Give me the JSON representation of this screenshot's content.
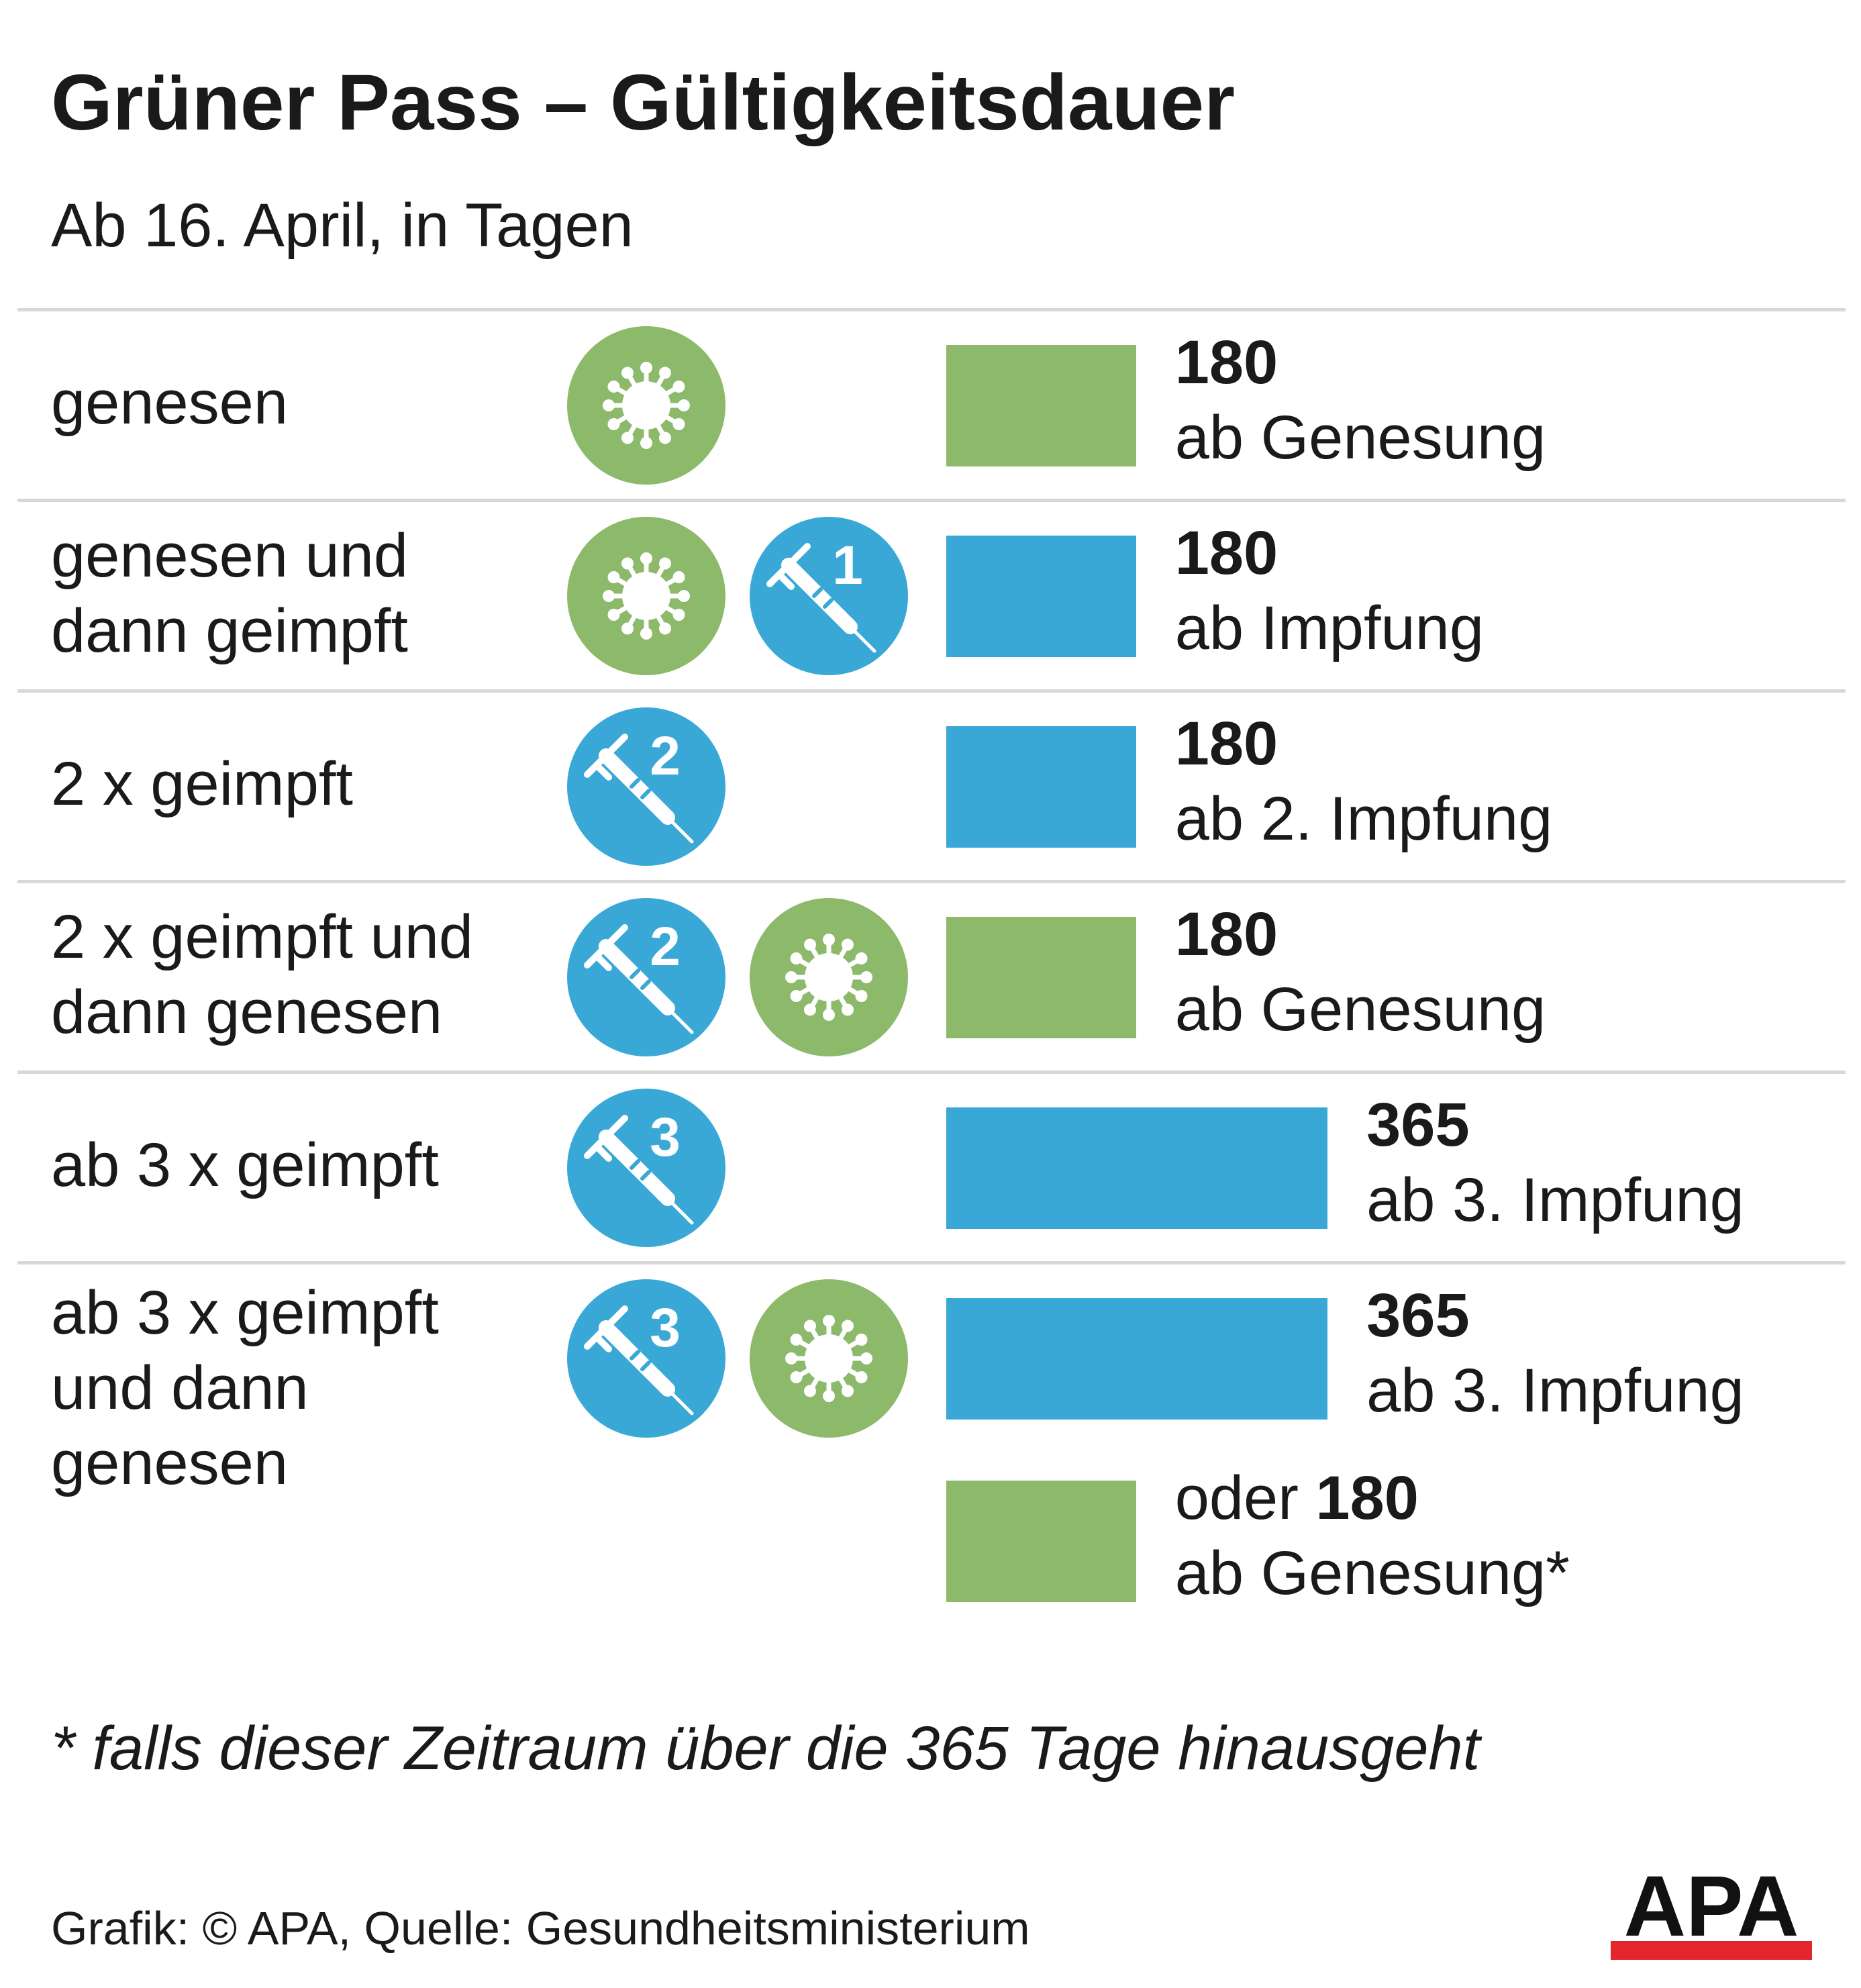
{
  "title": "Grüner Pass – Gültigkeitsdauer",
  "subtitle": "Ab 16. April, in Tagen",
  "footnote": "* falls dieser Zeitraum über die 365 Tage hinausgeht",
  "credit": "Grafik: © APA, Quelle: Gesundheitsministerium",
  "logo_text": "APA",
  "colors": {
    "green": "#8db96b",
    "blue": "#3aa8d6",
    "logo_red": "#e3262c",
    "divider": "#d8d8d8"
  },
  "chart_data": {
    "type": "bar",
    "orientation": "horizontal",
    "title": "Grüner Pass – Gültigkeitsdauer",
    "subtitle": "Ab 16. April, in Tagen",
    "rows": [
      {
        "label": "genesen",
        "icons": [
          {
            "kind": "virus-icon",
            "color": "green"
          }
        ],
        "bars": [
          {
            "value": 180,
            "color": "green",
            "prefix": "",
            "value_label": "180",
            "note": "ab Genesung"
          }
        ]
      },
      {
        "label": "genesen und\ndann geimpft",
        "icons": [
          {
            "kind": "virus-icon",
            "color": "green"
          },
          {
            "kind": "syringe-icon",
            "color": "blue",
            "number": "1"
          }
        ],
        "bars": [
          {
            "value": 180,
            "color": "blue",
            "prefix": "",
            "value_label": "180",
            "note": "ab Impfung"
          }
        ]
      },
      {
        "label": "2 x geimpft",
        "icons": [
          {
            "kind": "syringe-icon",
            "color": "blue",
            "number": "2"
          }
        ],
        "bars": [
          {
            "value": 180,
            "color": "blue",
            "prefix": "",
            "value_label": "180",
            "note": "ab 2. Impfung"
          }
        ]
      },
      {
        "label": "2 x geimpft und\ndann genesen",
        "icons": [
          {
            "kind": "syringe-icon",
            "color": "blue",
            "number": "2"
          },
          {
            "kind": "virus-icon",
            "color": "green"
          }
        ],
        "bars": [
          {
            "value": 180,
            "color": "green",
            "prefix": "",
            "value_label": "180",
            "note": "ab Genesung"
          }
        ]
      },
      {
        "label": "ab 3 x geimpft",
        "icons": [
          {
            "kind": "syringe-icon",
            "color": "blue",
            "number": "3"
          }
        ],
        "bars": [
          {
            "value": 365,
            "color": "blue",
            "prefix": "",
            "value_label": "365",
            "note": "ab 3. Impfung"
          }
        ]
      },
      {
        "label": "ab 3 x geimpft\nund dann\ngenesen",
        "icons": [
          {
            "kind": "syringe-icon",
            "color": "blue",
            "number": "3"
          },
          {
            "kind": "virus-icon",
            "color": "green"
          }
        ],
        "bars": [
          {
            "value": 365,
            "color": "blue",
            "prefix": "",
            "value_label": "365",
            "note": "ab 3. Impfung"
          },
          {
            "value": 180,
            "color": "green",
            "prefix": "oder ",
            "value_label": "180",
            "note": "ab Genesung*"
          }
        ]
      }
    ]
  }
}
